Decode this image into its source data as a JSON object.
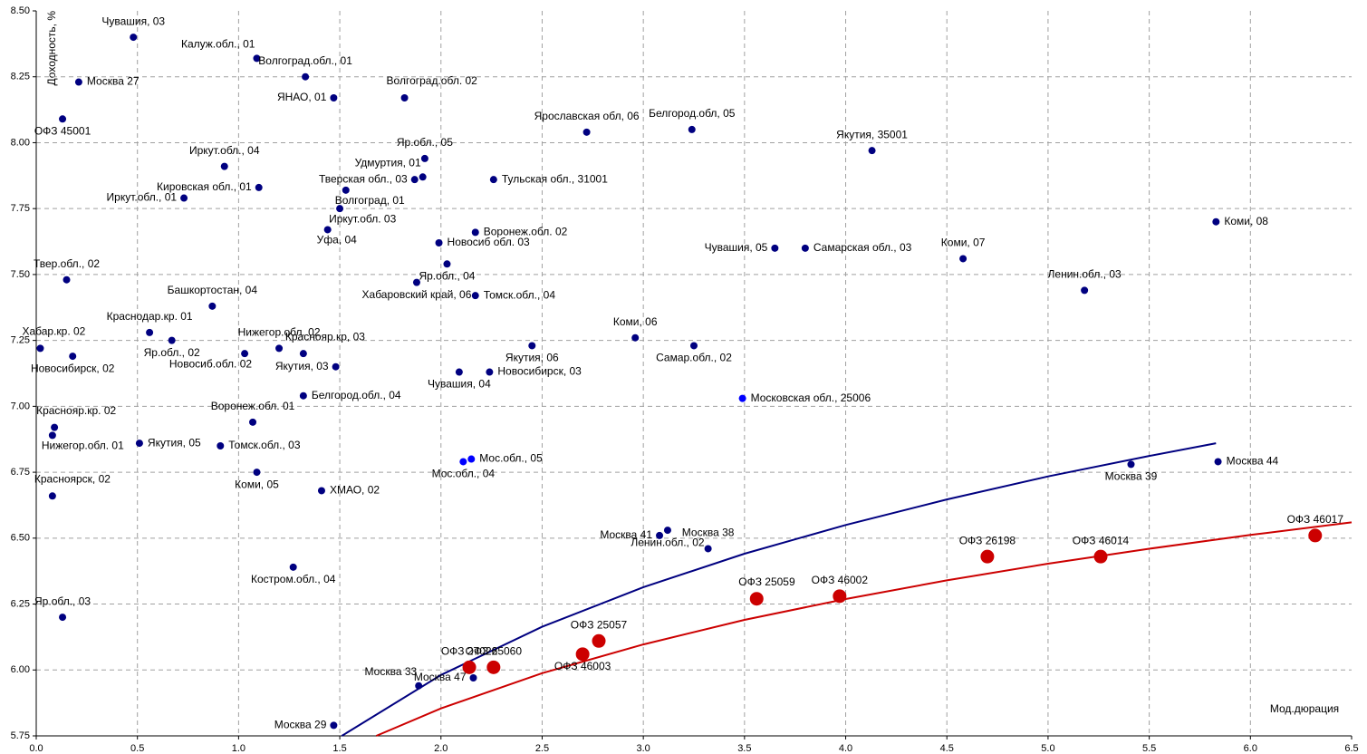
{
  "chart_data": {
    "type": "scatter",
    "y_label": "Доходность, %",
    "x_label": "Мод.дюрация",
    "xlim": [
      0,
      6.5
    ],
    "ylim": [
      5.75,
      8.5
    ],
    "xticks": [
      {
        "value": 0,
        "label": "0.0"
      },
      0.5,
      {
        "value": 1,
        "label": "1.0"
      },
      1.5,
      {
        "value": 2,
        "label": "2.0"
      },
      2.5,
      {
        "value": 3,
        "label": "3.0"
      },
      3.5,
      {
        "value": 4,
        "label": "4.0"
      },
      4.5,
      {
        "value": 5,
        "label": "5.0"
      },
      5.5,
      {
        "value": 6,
        "label": "6.0"
      },
      6.5
    ],
    "yticks": [
      5.75,
      {
        "value": 6,
        "label": "6.00"
      },
      6.25,
      {
        "value": 6.5,
        "label": "6.50"
      },
      6.75,
      {
        "value": 7,
        "label": "7.00"
      },
      7.25,
      {
        "value": 7.5,
        "label": "7.50"
      },
      7.75,
      {
        "value": 8,
        "label": "8.00"
      },
      8.25,
      {
        "value": 8.5,
        "label": "8.50"
      }
    ],
    "grid": true,
    "series": [
      {
        "color": "#000080",
        "labels": [
          "Чувашия, 03",
          "Калуж.обл., 01",
          "Волгоград.обл., 01",
          "Москва 27",
          "ЯНАО, 01",
          "Волгоград.обл. 02",
          "ОФЗ 45001",
          "Ярославская обл, 06",
          "Белгород.обл, 05",
          "Якутия, 35001",
          "Яр.обл., 05",
          "Иркут.обл., 04",
          "Удмуртия, 01",
          "Тверская обл., 03",
          "Тульская обл., 31001",
          "Кировская обл., 01",
          "Волгоград, 01",
          "Иркут.обл., 01",
          "Иркут.обл. 03",
          "Коми, 08",
          "Воронеж.обл. 02",
          "Уфа, 04",
          "Новосиб обл. 03",
          "Чувашия, 05",
          "Самарская обл., 03",
          "Коми, 07",
          "Твер.обл., 02",
          "Яр.обл., 04",
          "Хабаровский край, 06",
          "Ленин.обл., 03",
          "Томск.обл., 04",
          "Башкортостан, 04",
          "Краснодар.кр. 01",
          "Хабар.кр. 02",
          "Яр.обл., 02",
          "Нижегор.обл. 02",
          "Краснояр.кр, 03",
          "Новосибирск, 02",
          "Новосиб.обл. 02",
          "Коми, 06",
          "Якутия, 06",
          "Самар.обл., 02",
          "Якутия, 03",
          "Чувашия, 04",
          "Новосибирск, 03",
          "Белгород.обл., 04",
          "Воронеж.обл. 01",
          "Краснояр.кр. 02",
          "Нижегор.обл. 01",
          "Якутия, 05",
          "Томск.обл., 03",
          "Коми, 05",
          "ХМАО, 02",
          "Красноярск, 02",
          "Москва 39",
          "Москва 44",
          "Ленин.обл., 02",
          "Москва 41",
          "Москва 38",
          "Костром.обл., 04",
          "Яр.обл., 03",
          "Москва 47",
          "Москва 33",
          "Москва 29"
        ],
        "x": [
          0.48,
          1.09,
          1.33,
          0.21,
          1.47,
          1.82,
          0.13,
          2.72,
          3.24,
          4.13,
          1.92,
          0.93,
          1.91,
          1.87,
          2.26,
          1.1,
          1.53,
          0.73,
          1.5,
          5.83,
          2.17,
          1.44,
          1.99,
          3.65,
          3.8,
          4.58,
          0.15,
          2.03,
          1.88,
          5.18,
          2.17,
          0.87,
          0.56,
          0.02,
          0.67,
          1.2,
          1.32,
          0.18,
          1.03,
          2.96,
          2.45,
          3.25,
          1.48,
          2.09,
          2.24,
          1.32,
          1.07,
          0.09,
          0.08,
          0.51,
          0.91,
          1.09,
          1.41,
          0.08,
          5.41,
          5.84,
          3.12,
          3.08,
          3.32,
          1.27,
          0.13,
          2.16,
          1.89,
          1.47
        ],
        "values": [
          8.4,
          8.32,
          8.25,
          8.23,
          8.17,
          8.17,
          8.09,
          8.04,
          8.05,
          7.97,
          7.94,
          7.91,
          7.87,
          7.86,
          7.86,
          7.83,
          7.82,
          7.79,
          7.75,
          7.7,
          7.66,
          7.67,
          7.62,
          7.6,
          7.6,
          7.56,
          7.48,
          7.54,
          7.47,
          7.44,
          7.42,
          7.38,
          7.28,
          7.22,
          7.25,
          7.22,
          7.2,
          7.19,
          7.2,
          7.26,
          7.23,
          7.23,
          7.15,
          7.13,
          7.13,
          7.04,
          6.94,
          6.92,
          6.89,
          6.86,
          6.85,
          6.75,
          6.68,
          6.66,
          6.78,
          6.79,
          6.53,
          6.51,
          6.46,
          6.39,
          6.2,
          5.97,
          5.94,
          5.79
        ]
      },
      {
        "color": "#0000ff",
        "labels": [
          "Московская обл., 25006",
          "Мос.обл., 05",
          "Мос.обл., 04"
        ],
        "x": [
          3.49,
          2.15,
          2.11
        ],
        "values": [
          7.03,
          6.8,
          6.79
        ]
      },
      {
        "color": "#cc0000",
        "labels": [
          "ОФЗ 46017",
          "ОФЗ 46014",
          "ОФЗ 26198",
          "ОФЗ 46002",
          "ОФЗ 25059",
          "ОФЗ 25057",
          "ОФЗ 46003",
          "ОФЗ 27026",
          "ОФЗ 25060"
        ],
        "x": [
          6.32,
          5.26,
          4.7,
          3.97,
          3.56,
          2.78,
          2.7,
          2.14,
          2.26
        ],
        "values": [
          6.51,
          6.43,
          6.43,
          6.28,
          6.27,
          6.11,
          6.06,
          6.01,
          6.01
        ]
      }
    ],
    "curves": [
      {
        "color": "#000080",
        "x": [
          1.51,
          2,
          2.5,
          3,
          3.5,
          4,
          4.5,
          5,
          5.5,
          5.83
        ],
        "values": [
          5.75,
          5.981,
          6.164,
          6.314,
          6.441,
          6.55,
          6.647,
          6.734,
          6.812,
          6.86
        ]
      },
      {
        "color": "#cc0000",
        "x": [
          1.68,
          2,
          2.5,
          3,
          3.5,
          4,
          4.5,
          5,
          5.5,
          6,
          6.5
        ],
        "values": [
          5.75,
          5.854,
          5.988,
          6.097,
          6.19,
          6.269,
          6.34,
          6.403,
          6.46,
          6.512,
          6.56
        ]
      }
    ]
  }
}
